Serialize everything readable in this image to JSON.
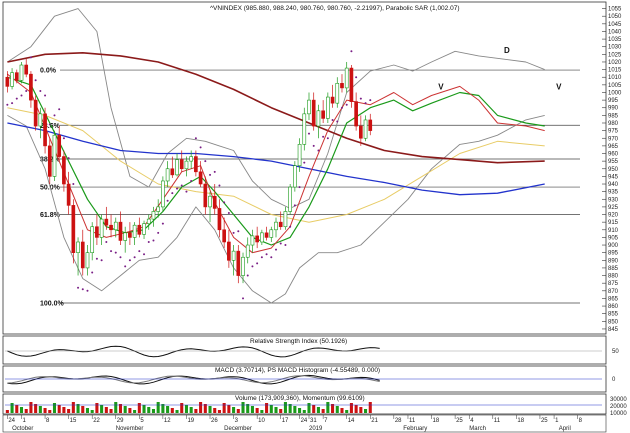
{
  "chart_data": {
    "type": "candlestick",
    "title": "^VNINDEX (985.880, 988.240, 980.760, 980.760, -2.21997), Parabolic SAR (1,002.07)",
    "y_ticks": [
      845,
      850,
      855,
      860,
      865,
      870,
      875,
      880,
      885,
      890,
      895,
      900,
      905,
      910,
      915,
      920,
      925,
      930,
      935,
      940,
      945,
      950,
      955,
      960,
      965,
      970,
      975,
      980,
      985,
      990,
      995,
      1000,
      1005,
      1010,
      1015,
      1020,
      1025,
      1030,
      1035,
      1040,
      1045,
      1050,
      1055
    ],
    "ylim": [
      843,
      1058
    ],
    "x_labels": [
      {
        "i": 0,
        "text": "24"
      },
      {
        "i": 3,
        "text": "1"
      },
      {
        "i": 8,
        "text": "8"
      },
      {
        "i": 13,
        "text": "15"
      },
      {
        "i": 18,
        "text": "22"
      },
      {
        "i": 23,
        "text": "29"
      },
      {
        "i": 28,
        "text": "5"
      },
      {
        "i": 33,
        "text": "12"
      },
      {
        "i": 38,
        "text": "19"
      },
      {
        "i": 43,
        "text": "26"
      },
      {
        "i": 48,
        "text": "3"
      },
      {
        "i": 53,
        "text": "10"
      },
      {
        "i": 58,
        "text": "17"
      },
      {
        "i": 62,
        "text": "24"
      },
      {
        "i": 64,
        "text": "31"
      },
      {
        "i": 67,
        "text": "7"
      },
      {
        "i": 72,
        "text": "14"
      },
      {
        "i": 77,
        "text": "21"
      },
      {
        "i": 82,
        "text": "28"
      },
      {
        "i": 85,
        "text": "11"
      },
      {
        "i": 90,
        "text": "18"
      },
      {
        "i": 95,
        "text": "25"
      },
      {
        "i": 98,
        "text": "4"
      },
      {
        "i": 103,
        "text": "11"
      },
      {
        "i": 108,
        "text": "18"
      },
      {
        "i": 113,
        "text": "25"
      },
      {
        "i": 116,
        "text": "1"
      },
      {
        "i": 121,
        "text": "8"
      }
    ],
    "month_labels": [
      {
        "i": 1,
        "text": "October"
      },
      {
        "i": 23,
        "text": "November"
      },
      {
        "i": 46,
        "text": "December"
      },
      {
        "i": 64,
        "text": "2019"
      },
      {
        "i": 84,
        "text": "February"
      },
      {
        "i": 98,
        "text": "March"
      },
      {
        "i": 117,
        "text": "April"
      }
    ],
    "fib_levels": [
      {
        "label": "0.0%",
        "value": 1014.7
      },
      {
        "label": "23.6%",
        "value": 978.5
      },
      {
        "label": "38.2%",
        "value": 956.4
      },
      {
        "label": "50.0%",
        "value": 938.0
      },
      {
        "label": "61.8%",
        "value": 920.0
      },
      {
        "label": "100.0%",
        "value": 862.0
      }
    ],
    "annotations": [
      {
        "text": "V",
        "i": 92,
        "value": 1002
      },
      {
        "text": "D",
        "i": 106,
        "value": 1026
      },
      {
        "text": "V",
        "i": 117,
        "value": 1002
      }
    ],
    "candles": [
      [
        1010,
        1014,
        1000,
        1004
      ],
      [
        1004,
        1016,
        1002,
        1013
      ],
      [
        1013,
        1015,
        1006,
        1008
      ],
      [
        1008,
        1020,
        1006,
        1018
      ],
      [
        1018,
        1022,
        1010,
        1012
      ],
      [
        1012,
        1014,
        990,
        995
      ],
      [
        995,
        998,
        975,
        978
      ],
      [
        978,
        990,
        970,
        986
      ],
      [
        986,
        990,
        960,
        965
      ],
      [
        965,
        970,
        940,
        945
      ],
      [
        945,
        975,
        942,
        972
      ],
      [
        972,
        978,
        955,
        958
      ],
      [
        958,
        962,
        935,
        940
      ],
      [
        940,
        948,
        920,
        926
      ],
      [
        926,
        930,
        888,
        895
      ],
      [
        895,
        905,
        880,
        902
      ],
      [
        902,
        910,
        880,
        885
      ],
      [
        885,
        900,
        880,
        895
      ],
      [
        895,
        915,
        890,
        912
      ],
      [
        912,
        920,
        900,
        905
      ],
      [
        905,
        920,
        900,
        917
      ],
      [
        917,
        925,
        910,
        913
      ],
      [
        913,
        920,
        905,
        910
      ],
      [
        910,
        918,
        905,
        915
      ],
      [
        915,
        922,
        900,
        903
      ],
      [
        903,
        912,
        895,
        908
      ],
      [
        908,
        915,
        900,
        905
      ],
      [
        905,
        915,
        900,
        913
      ],
      [
        913,
        918,
        905,
        907
      ],
      [
        907,
        916,
        904,
        914
      ],
      [
        914,
        920,
        910,
        917
      ],
      [
        917,
        925,
        912,
        922
      ],
      [
        922,
        930,
        918,
        925
      ],
      [
        925,
        945,
        922,
        942
      ],
      [
        942,
        955,
        938,
        950
      ],
      [
        950,
        958,
        944,
        946
      ],
      [
        946,
        960,
        945,
        956
      ],
      [
        956,
        962,
        948,
        950
      ],
      [
        950,
        958,
        945,
        955
      ],
      [
        955,
        962,
        950,
        958
      ],
      [
        958,
        962,
        945,
        948
      ],
      [
        948,
        955,
        938,
        940
      ],
      [
        940,
        945,
        920,
        925
      ],
      [
        925,
        935,
        915,
        932
      ],
      [
        932,
        940,
        920,
        924
      ],
      [
        924,
        930,
        905,
        910
      ],
      [
        910,
        918,
        898,
        902
      ],
      [
        902,
        910,
        885,
        890
      ],
      [
        890,
        900,
        880,
        896
      ],
      [
        896,
        900,
        875,
        880
      ],
      [
        880,
        895,
        875,
        892
      ],
      [
        892,
        905,
        888,
        900
      ],
      [
        900,
        910,
        895,
        906
      ],
      [
        906,
        912,
        898,
        902
      ],
      [
        902,
        910,
        900,
        908
      ],
      [
        908,
        912,
        903,
        905
      ],
      [
        905,
        912,
        902,
        910
      ],
      [
        910,
        918,
        905,
        915
      ],
      [
        915,
        922,
        910,
        912
      ],
      [
        912,
        925,
        910,
        922
      ],
      [
        922,
        940,
        920,
        938
      ],
      [
        938,
        955,
        935,
        952
      ],
      [
        952,
        970,
        948,
        966
      ],
      [
        966,
        990,
        962,
        986
      ],
      [
        986,
        1000,
        982,
        995
      ],
      [
        995,
        1000,
        975,
        978
      ],
      [
        978,
        992,
        970,
        988
      ],
      [
        988,
        995,
        980,
        983
      ],
      [
        983,
        1000,
        980,
        997
      ],
      [
        997,
        1005,
        990,
        993
      ],
      [
        993,
        1010,
        990,
        1006
      ],
      [
        1006,
        1012,
        1000,
        1003
      ],
      [
        1003,
        1020,
        1000,
        1016
      ],
      [
        1016,
        1018,
        990,
        994
      ],
      [
        994,
        1000,
        975,
        978
      ],
      [
        978,
        985,
        965,
        970
      ],
      [
        970,
        985,
        968,
        982
      ],
      [
        982,
        986,
        972,
        975
      ]
    ],
    "series": [
      {
        "name": "Parabolic SAR",
        "color": "#7a1f86"
      },
      {
        "name": "MA 200",
        "color": "#8b1a1a"
      },
      {
        "name": "MA 100",
        "color": "#2233cc"
      },
      {
        "name": "MA 20",
        "color": "#1a9a1a"
      },
      {
        "name": "MA 10",
        "color": "#cc3333"
      },
      {
        "name": "Bollinger Bands",
        "color": "#888888"
      },
      {
        "name": "MA 50",
        "color": "#e8cc66"
      }
    ],
    "panels": [
      {
        "title": "Relative Strength Index (50.1926)",
        "ticks": [
          "50"
        ]
      },
      {
        "title": "MACD (3.70714), PS MACD Histogram (-4.55489, 0.000)",
        "ticks": [
          "0"
        ]
      },
      {
        "title": "Volume (173,909,360), Momentum (99.6109)",
        "ticks": [
          "30000",
          "20000",
          "10000"
        ]
      }
    ]
  }
}
